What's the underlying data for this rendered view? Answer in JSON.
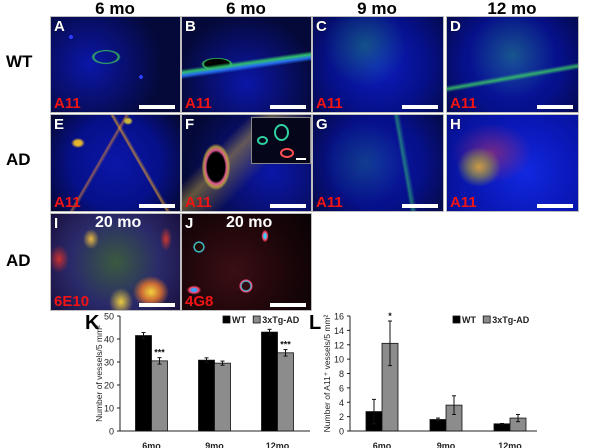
{
  "figure": {
    "column_titles": [
      "6 mo",
      "6 mo",
      "9 mo",
      "12 mo"
    ],
    "row_labels": [
      "WT",
      "AD",
      "AD"
    ],
    "panels": [
      {
        "letter": "A",
        "stain": "A11",
        "group": "WT",
        "age": "6 mo"
      },
      {
        "letter": "B",
        "stain": "A11",
        "group": "WT",
        "age": "6 mo"
      },
      {
        "letter": "C",
        "stain": "A11",
        "group": "WT",
        "age": "9 mo"
      },
      {
        "letter": "D",
        "stain": "A11",
        "group": "WT",
        "age": "12 mo"
      },
      {
        "letter": "E",
        "stain": "A11",
        "group": "AD",
        "age": "6 mo"
      },
      {
        "letter": "F",
        "stain": "A11",
        "group": "AD",
        "age": "6 mo",
        "inset": true
      },
      {
        "letter": "G",
        "stain": "A11",
        "group": "AD",
        "age": "9 mo"
      },
      {
        "letter": "H",
        "stain": "A11",
        "group": "AD",
        "age": "12 mo"
      },
      {
        "letter": "I",
        "stain": "6E10",
        "group": "AD",
        "age_label": "20 mo"
      },
      {
        "letter": "J",
        "stain": "4G8",
        "group": "AD",
        "age_label": "20 mo"
      }
    ],
    "colors": {
      "nuclei": "#1a2cff",
      "vessel": "#2fd24a",
      "amyloid": "#e8251a",
      "stain_label": "#f21414",
      "wt_bar": "#000000",
      "ad_bar": "#8c8c8c"
    }
  },
  "chart_data": [
    {
      "panel": "K",
      "type": "bar",
      "title": "",
      "xlabel": "",
      "ylabel": "Number of vessels/5 mm²",
      "categories": [
        "6mo",
        "9mo",
        "12mo"
      ],
      "ylim": [
        0,
        50
      ],
      "yticks": [
        0,
        10,
        20,
        30,
        40,
        50
      ],
      "legend": [
        "WT",
        "3xTg-AD"
      ],
      "legend_position": "top-right",
      "grid": false,
      "series": [
        {
          "name": "WT",
          "values": [
            41.5,
            30.8,
            43.0
          ],
          "errors": [
            1.3,
            1.0,
            1.2
          ],
          "color": "#000000"
        },
        {
          "name": "3xTg-AD",
          "values": [
            30.5,
            29.5,
            34.0
          ],
          "errors": [
            1.4,
            0.9,
            1.4
          ],
          "color": "#8c8c8c"
        }
      ],
      "annotations": [
        {
          "category": "6mo",
          "series": "3xTg-AD",
          "text": "***"
        },
        {
          "category": "12mo",
          "series": "3xTg-AD",
          "text": "***"
        }
      ]
    },
    {
      "panel": "L",
      "type": "bar",
      "title": "",
      "xlabel": "",
      "ylabel": "Number of A11⁺ vessels/5 mm²",
      "categories": [
        "6mo",
        "9mo",
        "12mo"
      ],
      "ylim": [
        0,
        16
      ],
      "yticks": [
        0,
        2,
        4,
        6,
        8,
        10,
        12,
        14,
        16
      ],
      "legend": [
        "WT",
        "3xTg-AD"
      ],
      "legend_position": "top-right",
      "grid": false,
      "series": [
        {
          "name": "WT",
          "values": [
            2.7,
            1.6,
            1.0
          ],
          "errors": [
            1.7,
            0.2,
            0.05
          ],
          "color": "#000000"
        },
        {
          "name": "3xTg-AD",
          "values": [
            12.2,
            3.6,
            1.8
          ],
          "errors": [
            3.1,
            1.3,
            0.5
          ],
          "color": "#8c8c8c"
        }
      ],
      "annotations": [
        {
          "category": "6mo",
          "series": "3xTg-AD",
          "text": "*"
        }
      ]
    }
  ]
}
